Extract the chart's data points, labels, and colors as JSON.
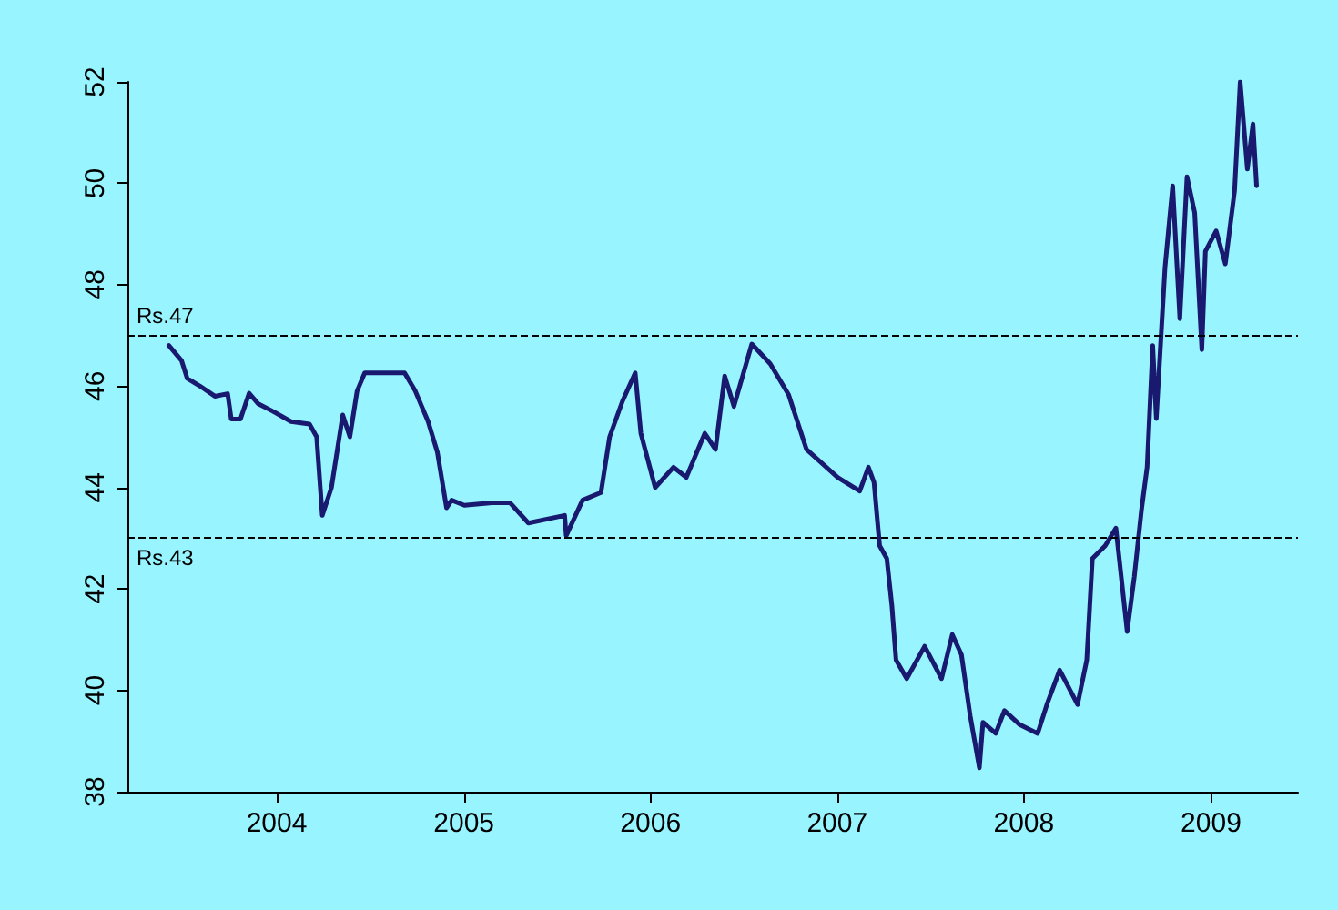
{
  "chart_data": {
    "type": "line",
    "xlim": [
      "2003-03-15",
      "2009-06-20"
    ],
    "xticks": [
      "2004",
      "2005",
      "2006",
      "2007",
      "2008",
      "2009"
    ],
    "ylim": [
      38,
      52
    ],
    "yticks": [
      38,
      40,
      42,
      44,
      46,
      48,
      50,
      52
    ],
    "grid": false,
    "marker": "none",
    "line_style": "solid",
    "ref_lines": [
      {
        "axis": "y",
        "value": 47,
        "label": "Rs.47",
        "line_style": "dashed",
        "color": "#000000"
      },
      {
        "axis": "y",
        "value": 43,
        "label": "Rs.43",
        "line_style": "dashed",
        "color": "#000000"
      }
    ],
    "series": [
      {
        "color": "#191970",
        "x": [
          "2003-06-04",
          "2003-06-29",
          "2003-07-10",
          "2003-08-04",
          "2003-09-02",
          "2003-09-27",
          "2003-10-04",
          "2003-10-22",
          "2003-11-08",
          "2003-11-26",
          "2003-12-25",
          "2004-01-29",
          "2004-03-05",
          "2004-03-19",
          "2004-03-30",
          "2004-04-17",
          "2004-05-09",
          "2004-05-23",
          "2004-06-06",
          "2004-06-21",
          "2004-07-26",
          "2004-09-07",
          "2004-09-28",
          "2004-10-23",
          "2004-11-10",
          "2004-11-28",
          "2004-12-08",
          "2005-01-02",
          "2005-02-25",
          "2005-04-01",
          "2005-05-07",
          "2005-07-17",
          "2005-07-20",
          "2005-08-21",
          "2005-09-26",
          "2005-10-13",
          "2005-11-07",
          "2005-12-02",
          "2005-12-13",
          "2006-01-10",
          "2006-02-15",
          "2006-03-12",
          "2006-04-17",
          "2006-05-08",
          "2006-05-26",
          "2006-06-13",
          "2006-07-18",
          "2006-08-23",
          "2006-09-28",
          "2006-11-02",
          "2007-01-02",
          "2007-02-14",
          "2007-03-03",
          "2007-03-14",
          "2007-03-21",
          "2007-03-25",
          "2007-04-08",
          "2007-04-18",
          "2007-04-26",
          "2007-05-17",
          "2007-06-21",
          "2007-07-24",
          "2007-08-14",
          "2007-09-01",
          "2007-09-18",
          "2007-10-06",
          "2007-10-13",
          "2007-11-07",
          "2007-11-24",
          "2007-12-23",
          "2008-01-28",
          "2008-02-15",
          "2008-03-11",
          "2008-04-15",
          "2008-05-03",
          "2008-05-14",
          "2008-06-08",
          "2008-06-29",
          "2008-07-21",
          "2008-08-04",
          "2008-08-18",
          "2008-08-29",
          "2008-09-09",
          "2008-09-16",
          "2008-10-03",
          "2008-10-18",
          "2008-11-01",
          "2008-11-15",
          "2008-11-30",
          "2008-12-14",
          "2008-12-21",
          "2009-01-11",
          "2009-01-29",
          "2009-02-16",
          "2009-02-27",
          "2009-03-13",
          "2009-03-24",
          "2009-03-31"
        ],
        "values": [
          46.8,
          46.5,
          46.15,
          46.0,
          45.8,
          45.85,
          45.35,
          45.35,
          45.86,
          45.65,
          45.5,
          45.3,
          45.25,
          45.0,
          43.45,
          44.0,
          45.43,
          45.0,
          45.9,
          46.26,
          46.26,
          46.26,
          45.9,
          45.3,
          44.7,
          43.6,
          43.75,
          43.65,
          43.7,
          43.7,
          43.3,
          43.45,
          43.05,
          43.75,
          43.9,
          45.0,
          45.7,
          46.26,
          45.07,
          44.0,
          44.4,
          44.2,
          45.07,
          44.75,
          46.2,
          45.6,
          46.83,
          46.44,
          45.83,
          44.75,
          44.2,
          43.93,
          44.4,
          44.1,
          43.3,
          42.85,
          42.6,
          41.66,
          40.6,
          40.23,
          40.87,
          40.23,
          41.1,
          40.7,
          39.5,
          38.47,
          39.37,
          39.15,
          39.6,
          39.33,
          39.15,
          39.72,
          40.4,
          39.72,
          40.6,
          42.6,
          42.85,
          43.2,
          41.16,
          42.24,
          43.56,
          44.4,
          46.8,
          45.36,
          48.34,
          49.95,
          47.33,
          50.13,
          49.42,
          46.72,
          48.66,
          49.06,
          48.41,
          49.85,
          52.0,
          50.28,
          51.17,
          49.95
        ]
      }
    ]
  }
}
